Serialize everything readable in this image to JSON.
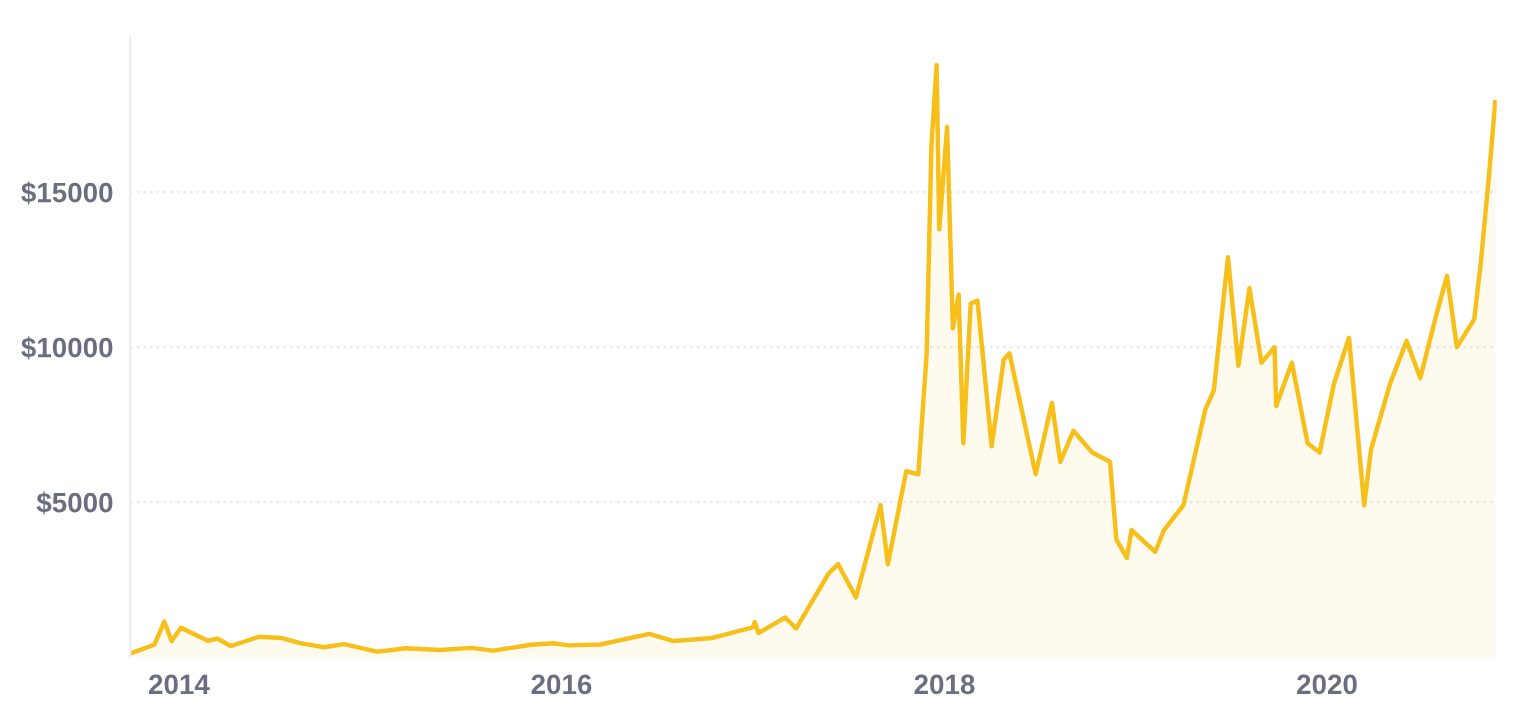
{
  "chart_data": {
    "type": "area",
    "grid": "y",
    "legend": false,
    "xlim": [
      "2013-09-30",
      "2020-11-20"
    ],
    "xticks": [
      "2014",
      "2016",
      "2018",
      "2020"
    ],
    "ylim": [
      0,
      20000
    ],
    "yticks": [
      {
        "value": 5000,
        "label": "$5000"
      },
      {
        "value": 10000,
        "label": "$10000"
      },
      {
        "value": 15000,
        "label": "$15000"
      }
    ],
    "x": [
      "2013-10-01",
      "2013-11-15",
      "2013-12-04",
      "2013-12-18",
      "2014-01-05",
      "2014-02-25",
      "2014-03-15",
      "2014-04-10",
      "2014-06-03",
      "2014-07-15",
      "2014-08-18",
      "2014-10-05",
      "2014-11-12",
      "2015-01-14",
      "2015-02-15",
      "2015-03-10",
      "2015-05-15",
      "2015-07-12",
      "2015-08-24",
      "2015-11-04",
      "2015-12-16",
      "2016-01-15",
      "2016-03-15",
      "2016-06-17",
      "2016-08-02",
      "2016-10-15",
      "2016-12-31",
      "2017-01-04",
      "2017-01-11",
      "2017-03-03",
      "2017-03-24",
      "2017-05-25",
      "2017-06-12",
      "2017-07-16",
      "2017-09-01",
      "2017-09-15",
      "2017-10-20",
      "2017-11-12",
      "2017-11-28",
      "2017-12-07",
      "2017-12-17",
      "2017-12-22",
      "2018-01-06",
      "2018-01-17",
      "2018-01-28",
      "2018-02-06",
      "2018-02-20",
      "2018-03-05",
      "2018-04-01",
      "2018-04-24",
      "2018-05-05",
      "2018-06-24",
      "2018-07-25",
      "2018-08-10",
      "2018-09-04",
      "2018-10-10",
      "2018-11-13",
      "2018-11-25",
      "2018-12-15",
      "2018-12-24",
      "2019-02-07",
      "2019-02-24",
      "2019-04-02",
      "2019-05-14",
      "2019-05-30",
      "2019-06-26",
      "2019-07-16",
      "2019-08-06",
      "2019-08-29",
      "2019-09-23",
      "2019-09-26",
      "2019-10-26",
      "2019-11-25",
      "2019-12-18",
      "2020-01-14",
      "2020-02-12",
      "2020-03-12",
      "2020-03-25",
      "2020-04-30",
      "2020-06-01",
      "2020-06-27",
      "2020-07-27",
      "2020-08-17",
      "2020-09-05",
      "2020-10-08",
      "2020-10-21",
      "2020-11-05",
      "2020-11-17"
    ],
    "series": [
      {
        "color": "#f7bf1a",
        "values": [
          120,
          400,
          1150,
          520,
          950,
          530,
          600,
          360,
          660,
          620,
          460,
          320,
          420,
          180,
          240,
          290,
          230,
          300,
          210,
          400,
          450,
          380,
          410,
          750,
          520,
          620,
          960,
          1130,
          780,
          1280,
          930,
          2700,
          3000,
          1930,
          4900,
          3000,
          6000,
          5900,
          9800,
          16500,
          19100,
          13800,
          17100,
          10600,
          11700,
          6900,
          11400,
          11500,
          6800,
          9600,
          9800,
          5900,
          8200,
          6300,
          7300,
          6600,
          6300,
          3800,
          3200,
          4100,
          3400,
          4100,
          4900,
          8000,
          8600,
          12900,
          9400,
          11900,
          9500,
          10000,
          8100,
          9500,
          6900,
          6600,
          8800,
          10300,
          4900,
          6700,
          8800,
          10200,
          9000,
          11000,
          12300,
          10000,
          10900,
          12800,
          15500,
          17900
        ]
      }
    ]
  }
}
